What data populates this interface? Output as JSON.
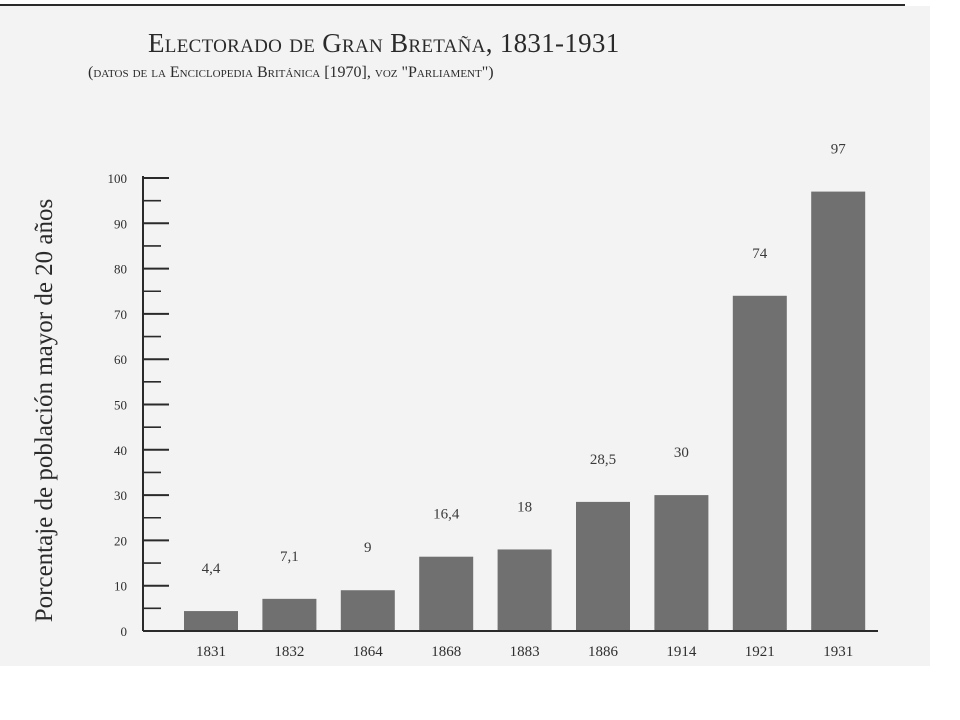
{
  "chart_data": {
    "type": "bar",
    "title": "Electorado de Gran Bretaña, 1831-1931",
    "subtitle": "(datos de la Enciclopedia Británica [1970], voz \"Parliament\")",
    "xlabel": "",
    "ylabel": "Porcentaje de población mayor de 20 años",
    "categories": [
      "1831",
      "1832",
      "1864",
      "1868",
      "1883",
      "1886",
      "1914",
      "1921",
      "1931"
    ],
    "values": [
      4.4,
      7.1,
      9,
      16.4,
      18,
      28.5,
      30,
      74,
      97
    ],
    "data_labels": [
      "4,4",
      "7,1",
      "9",
      "16,4",
      "18",
      "28,5",
      "30",
      "74",
      "97"
    ],
    "ylim": [
      0,
      100
    ],
    "yticks": [
      0,
      10,
      20,
      30,
      40,
      50,
      60,
      70,
      80,
      90,
      100
    ],
    "grid": false,
    "legend": "none",
    "colors": {
      "bar": "#707070",
      "axis": "#2a2a2a",
      "text": "#2e2e2e"
    }
  }
}
